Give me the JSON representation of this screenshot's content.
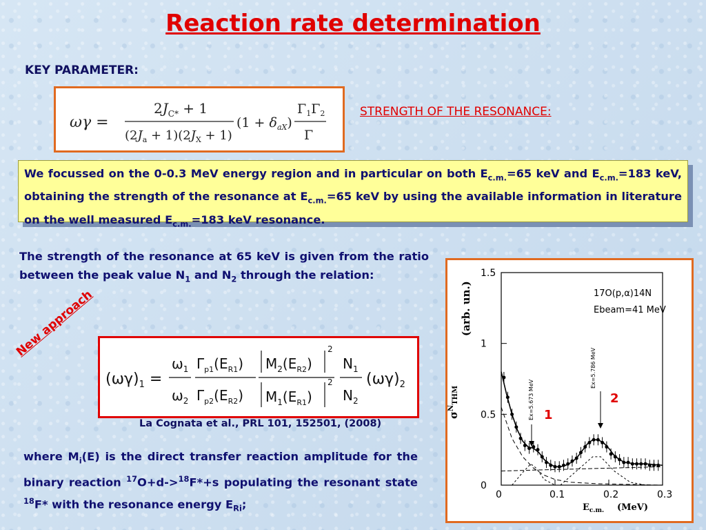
{
  "title": "Reaction rate determination",
  "key_parameter": "KEY PARAMETER:",
  "strength_label": "STRENGTH OF THE RESONANCE:",
  "highlight": {
    "t1": "We focussed on the 0-0.3 MeV energy region and in particular on both E",
    "s1": "c.m.",
    "t2": "=65 keV and E",
    "s2": "c.m.",
    "t3": "=183 keV, obtaining the strength of the resonance at E",
    "s3": "c.m.",
    "t4": "=65 keV by using the available information in literature on the well measured E",
    "s4": "c.m.",
    "t5": "=183 keV resonance."
  },
  "para1": {
    "t1": "The strength of the resonance at 65 keV is given from the ratio between the peak value N",
    "s1": "1",
    "t2": " and N",
    "s2": "2",
    "t3": " through the relation:"
  },
  "new_approach": "New approach",
  "reference": "La Cognata et al., PRL 101, 152501, (2008)",
  "para2": {
    "t1": "where M",
    "s1": "i",
    "t2": "(E) is the direct transfer reaction amplitude for the binary reaction ",
    "sup1": "17",
    "t3": "O+d->",
    "sup2": "18",
    "t4": "F*+s populating the resonant state ",
    "sup3": "18",
    "t5": "F* with the resonance energy E",
    "s5": "Ri",
    "t6": ";"
  },
  "chart_data": {
    "type": "scatter",
    "reaction": "17O(p,α)14N",
    "beam": "Ebeam=41 MeV",
    "ylabel": "(arb. un.)",
    "xlabel": "(MeV)",
    "xlim": [
      0,
      0.3
    ],
    "ylim": [
      0,
      1.5
    ],
    "xticks": [
      "0",
      "0.1",
      "0.2",
      "0.3"
    ],
    "yticks": [
      "0",
      "0.5",
      "1",
      "1.5"
    ],
    "res1_label": "Ex=5.673 MeV",
    "res2_label": "Ex=5.786 MeV",
    "marker1": "1",
    "marker2": "2",
    "points": [
      [
        0.005,
        0.76
      ],
      [
        0.012,
        0.62
      ],
      [
        0.02,
        0.5
      ],
      [
        0.028,
        0.41
      ],
      [
        0.036,
        0.33
      ],
      [
        0.044,
        0.28
      ],
      [
        0.052,
        0.26
      ],
      [
        0.06,
        0.27
      ],
      [
        0.068,
        0.25
      ],
      [
        0.076,
        0.2
      ],
      [
        0.084,
        0.16
      ],
      [
        0.092,
        0.14
      ],
      [
        0.1,
        0.13
      ],
      [
        0.108,
        0.13
      ],
      [
        0.116,
        0.14
      ],
      [
        0.124,
        0.15
      ],
      [
        0.132,
        0.17
      ],
      [
        0.14,
        0.19
      ],
      [
        0.148,
        0.23
      ],
      [
        0.156,
        0.27
      ],
      [
        0.164,
        0.3
      ],
      [
        0.172,
        0.32
      ],
      [
        0.18,
        0.32
      ],
      [
        0.188,
        0.3
      ],
      [
        0.196,
        0.27
      ],
      [
        0.204,
        0.22
      ],
      [
        0.212,
        0.2
      ],
      [
        0.22,
        0.18
      ],
      [
        0.228,
        0.16
      ],
      [
        0.236,
        0.16
      ],
      [
        0.244,
        0.15
      ],
      [
        0.252,
        0.15
      ],
      [
        0.26,
        0.15
      ],
      [
        0.268,
        0.15
      ],
      [
        0.276,
        0.14
      ],
      [
        0.284,
        0.14
      ],
      [
        0.292,
        0.14
      ]
    ],
    "fit": [
      [
        0.0,
        0.8
      ],
      [
        0.01,
        0.64
      ],
      [
        0.02,
        0.5
      ],
      [
        0.03,
        0.39
      ],
      [
        0.04,
        0.31
      ],
      [
        0.05,
        0.27
      ],
      [
        0.06,
        0.26
      ],
      [
        0.07,
        0.23
      ],
      [
        0.08,
        0.18
      ],
      [
        0.09,
        0.15
      ],
      [
        0.1,
        0.13
      ],
      [
        0.11,
        0.13
      ],
      [
        0.12,
        0.14
      ],
      [
        0.13,
        0.16
      ],
      [
        0.14,
        0.19
      ],
      [
        0.15,
        0.24
      ],
      [
        0.16,
        0.29
      ],
      [
        0.17,
        0.32
      ],
      [
        0.18,
        0.32
      ],
      [
        0.19,
        0.3
      ],
      [
        0.2,
        0.26
      ],
      [
        0.21,
        0.21
      ],
      [
        0.22,
        0.18
      ],
      [
        0.23,
        0.16
      ],
      [
        0.25,
        0.15
      ],
      [
        0.27,
        0.15
      ],
      [
        0.3,
        0.14
      ]
    ],
    "bg": [
      [
        0.0,
        0.55
      ],
      [
        0.02,
        0.33
      ],
      [
        0.04,
        0.2
      ],
      [
        0.06,
        0.12
      ],
      [
        0.08,
        0.07
      ],
      [
        0.1,
        0.04
      ],
      [
        0.13,
        0.02
      ],
      [
        0.18,
        0.01
      ],
      [
        0.3,
        0.0
      ]
    ],
    "peak1": [
      [
        0.02,
        0.0
      ],
      [
        0.04,
        0.09
      ],
      [
        0.055,
        0.15
      ],
      [
        0.065,
        0.12
      ],
      [
        0.08,
        0.04
      ],
      [
        0.1,
        0.0
      ]
    ],
    "peak2": [
      [
        0.11,
        0.0
      ],
      [
        0.14,
        0.1
      ],
      [
        0.17,
        0.2
      ],
      [
        0.185,
        0.2
      ],
      [
        0.21,
        0.1
      ],
      [
        0.24,
        0.02
      ],
      [
        0.27,
        0.0
      ]
    ],
    "flat": [
      [
        0.0,
        0.1
      ],
      [
        0.3,
        0.13
      ]
    ]
  }
}
